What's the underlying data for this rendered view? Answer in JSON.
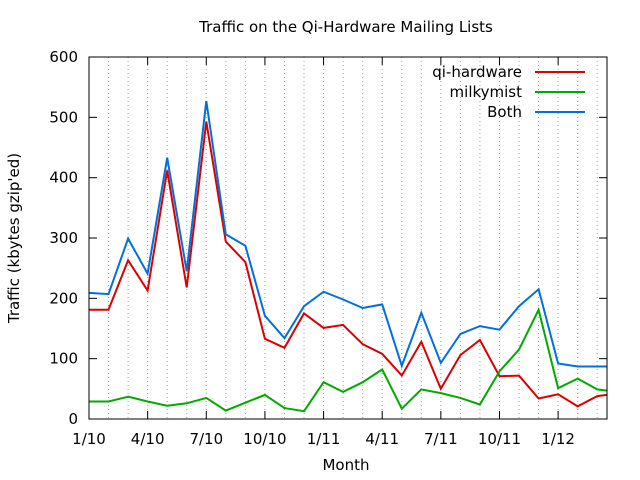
{
  "chart_data": {
    "type": "line",
    "title": "Traffic on the Qi-Hardware Mailing Lists",
    "xlabel": "Month",
    "ylabel": "Traffic (kbytes gzip'ed)",
    "ylim": [
      0,
      600
    ],
    "yticks": [
      0,
      100,
      200,
      300,
      400,
      500,
      600
    ],
    "xlim": [
      0,
      26.5
    ],
    "x_tick_labels": [
      {
        "x": 0,
        "label": "1/10"
      },
      {
        "x": 3,
        "label": "4/10"
      },
      {
        "x": 6,
        "label": "7/10"
      },
      {
        "x": 9,
        "label": "10/10"
      },
      {
        "x": 12,
        "label": "1/11"
      },
      {
        "x": 15,
        "label": "4/11"
      },
      {
        "x": 18,
        "label": "7/11"
      },
      {
        "x": 21,
        "label": "10/11"
      },
      {
        "x": 24,
        "label": "1/12"
      }
    ],
    "grid": "vertical dotted lines at each month",
    "legend_position": "top-right",
    "series": [
      {
        "name": "qi-hardware",
        "color": "#dd0000",
        "x": [
          0,
          1,
          2,
          3,
          4,
          5,
          6,
          7,
          8,
          9,
          10,
          11,
          12,
          13,
          14,
          15,
          16,
          17,
          18,
          19,
          20,
          21,
          22,
          23,
          24,
          25,
          26,
          26.5
        ],
        "values": [
          181,
          181,
          263,
          213,
          412,
          218,
          493,
          294,
          260,
          133,
          118,
          175,
          151,
          156,
          124,
          108,
          72,
          128,
          50,
          106,
          131,
          71,
          72,
          34,
          41,
          21,
          38,
          40
        ]
      },
      {
        "name": "milkymist",
        "color": "#00aa00",
        "x": [
          0,
          1,
          2,
          3,
          4,
          5,
          6,
          7,
          8,
          9,
          10,
          11,
          12,
          13,
          14,
          15,
          16,
          17,
          18,
          19,
          20,
          21,
          22,
          23,
          24,
          25,
          26,
          26.5
        ],
        "values": [
          29,
          29,
          37,
          29,
          22,
          26,
          35,
          14,
          27,
          40,
          18,
          13,
          61,
          45,
          61,
          82,
          17,
          49,
          43,
          35,
          24,
          79,
          115,
          181,
          51,
          67,
          49,
          47
        ]
      },
      {
        "name": "Both",
        "color": "#0070dd",
        "x": [
          0,
          1,
          2,
          3,
          4,
          5,
          6,
          7,
          8,
          9,
          10,
          11,
          12,
          13,
          14,
          15,
          16,
          17,
          18,
          19,
          20,
          21,
          22,
          23,
          24,
          25,
          26,
          26.5
        ],
        "values": [
          209,
          207,
          299,
          241,
          433,
          245,
          527,
          306,
          287,
          171,
          134,
          187,
          211,
          198,
          184,
          190,
          88,
          176,
          93,
          141,
          154,
          148,
          187,
          215,
          92,
          87,
          87,
          87
        ]
      }
    ]
  }
}
